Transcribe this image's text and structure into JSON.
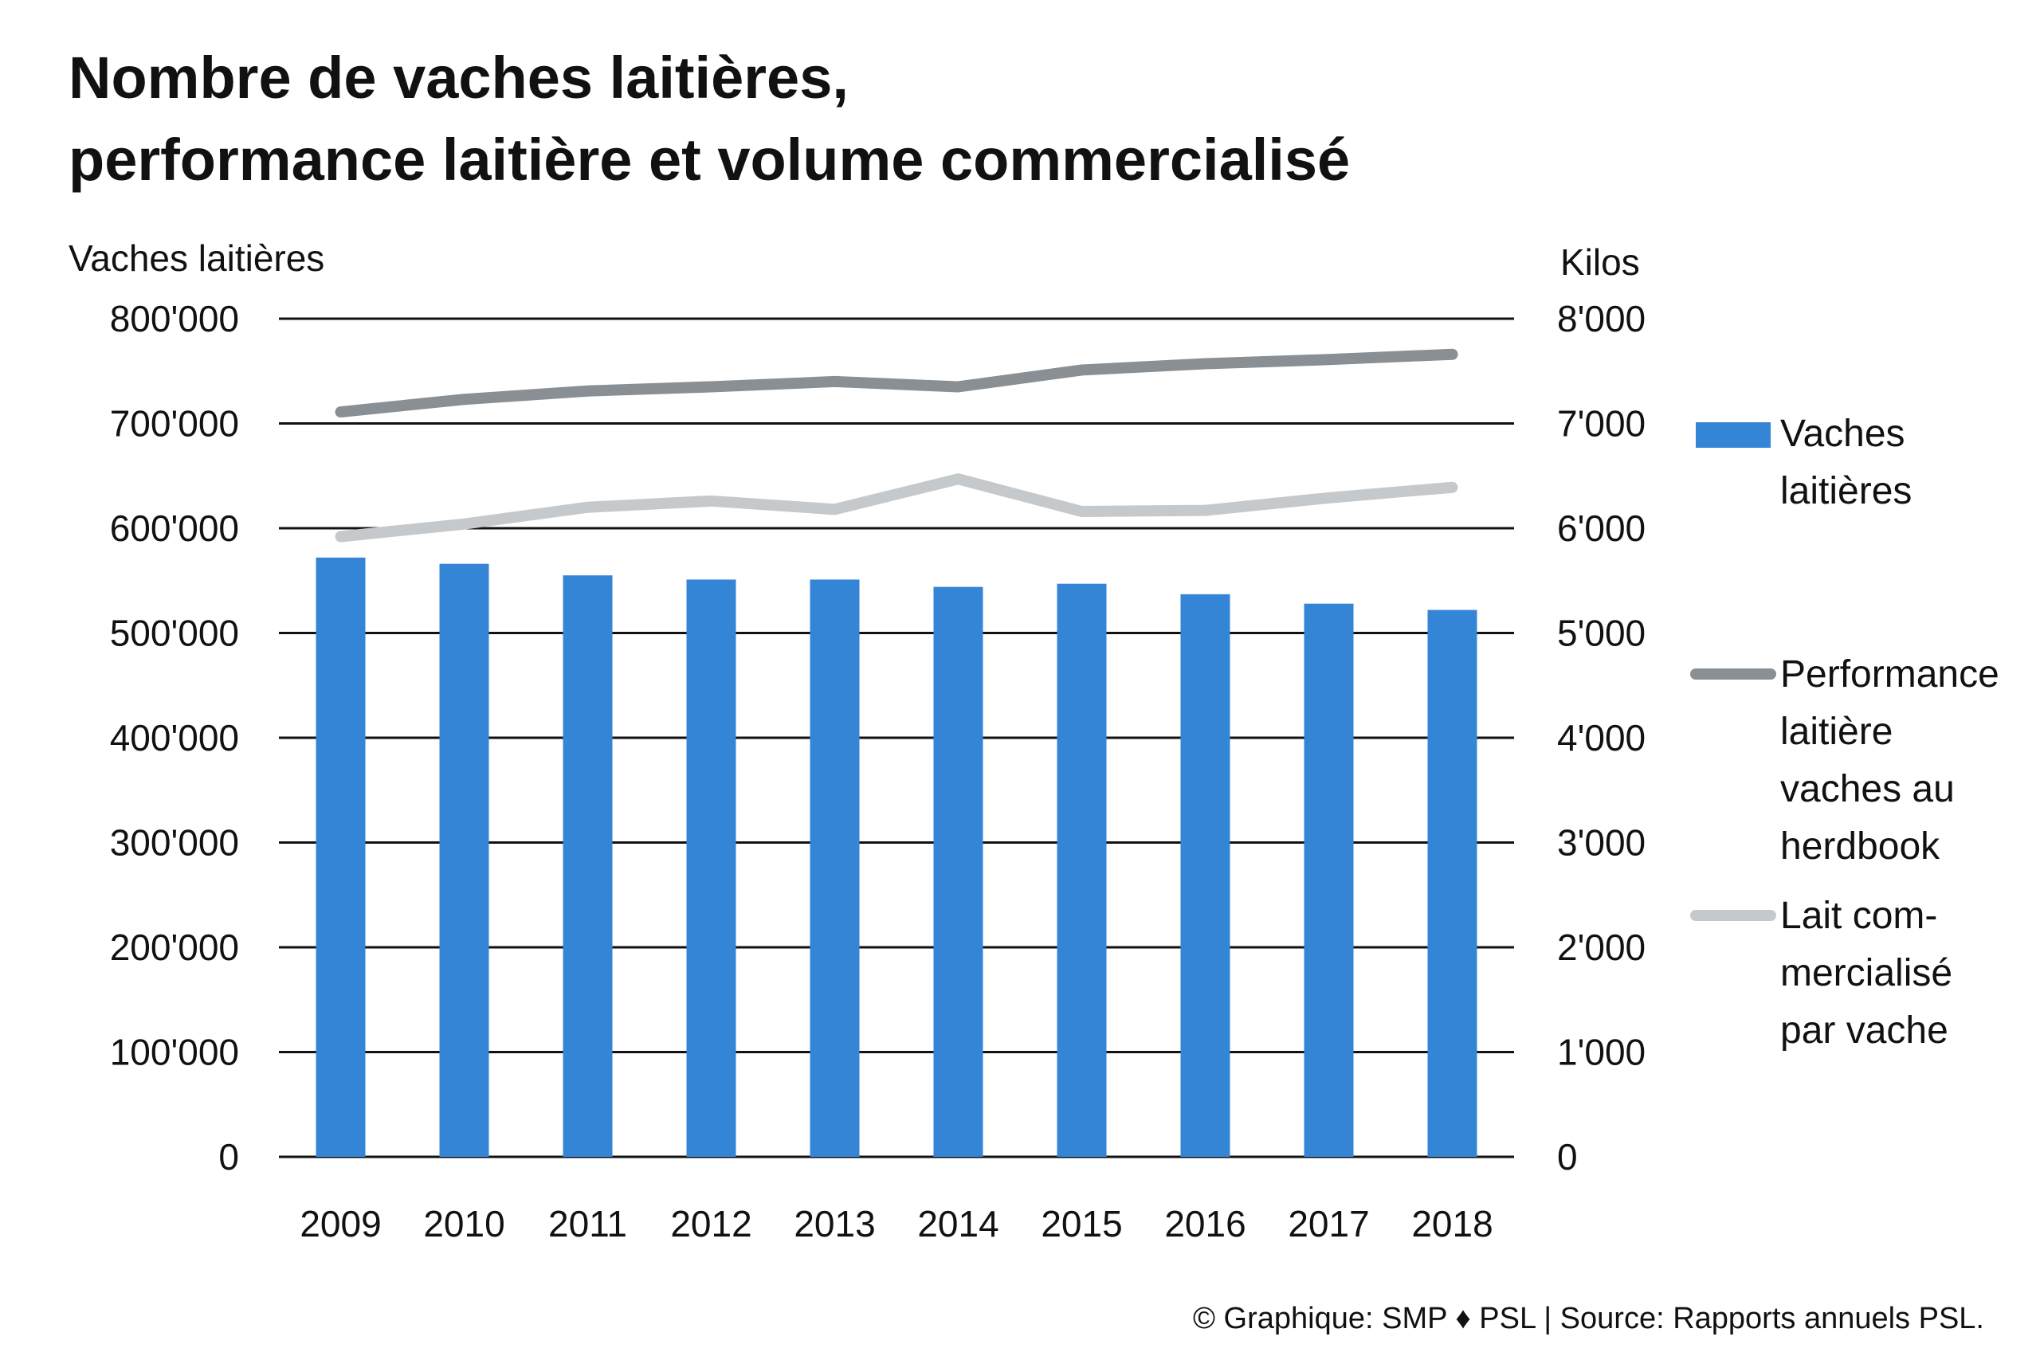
{
  "chart_data": {
    "type": "bar",
    "title_lines": [
      "Nombre de vaches laitières,",
      "performance laitière et volume commercialisé"
    ],
    "ylabel_left": "Vaches laitières",
    "ylabel_right": "Kilos",
    "categories": [
      "2009",
      "2010",
      "2011",
      "2012",
      "2013",
      "2014",
      "2015",
      "2016",
      "2017",
      "2018"
    ],
    "ylim_left": [
      0,
      800000
    ],
    "ylim_right": [
      0,
      8000
    ],
    "yticks_left": [
      "0",
      "100'000",
      "200'000",
      "300'000",
      "400'000",
      "500'000",
      "600'000",
      "700'000",
      "800'000"
    ],
    "yticks_right": [
      "0",
      "1'000",
      "2'000",
      "3'000",
      "4'000",
      "5'000",
      "6'000",
      "7'000",
      "8'000"
    ],
    "grid": true,
    "legend_position": "right",
    "series": [
      {
        "name": "Vaches laitières",
        "legend_lines": [
          "Vaches",
          "laitières"
        ],
        "type": "bar",
        "axis": "left",
        "color": "#3585D6",
        "values": [
          572000,
          566000,
          555000,
          551000,
          551000,
          544000,
          547000,
          537000,
          528000,
          522000
        ]
      },
      {
        "name": "Performance laitière vaches au herdbook",
        "legend_lines": [
          "Performance",
          "laitière",
          "vaches au",
          "herdbook"
        ],
        "type": "line",
        "axis": "right",
        "color": "#8A8F93",
        "values": [
          7110,
          7230,
          7310,
          7350,
          7400,
          7350,
          7510,
          7570,
          7610,
          7660
        ]
      },
      {
        "name": "Lait commercialisé par vache",
        "legend_lines": [
          "Lait com-",
          "mercialisé",
          "par vache"
        ],
        "type": "line",
        "axis": "right",
        "color": "#C5C9CC",
        "values": [
          5920,
          6040,
          6200,
          6260,
          6180,
          6470,
          6160,
          6170,
          6290,
          6390
        ]
      }
    ],
    "source": "© Graphique: SMP ♦ PSL | Source: Rapports annuels PSL."
  }
}
